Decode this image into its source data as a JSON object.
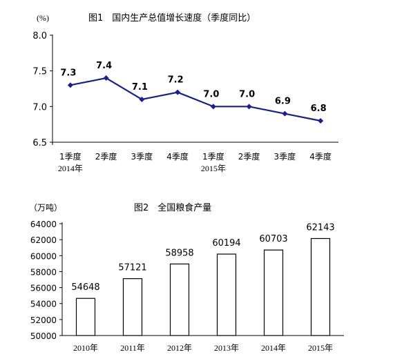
{
  "chart_data": [
    {
      "type": "line",
      "title": "图1　国内生产总值增长速度（季度同比）",
      "unit": "(%)",
      "categories": [
        "1季度",
        "2季度",
        "3季度",
        "4季度",
        "1季度",
        "2季度",
        "3季度",
        "4季度"
      ],
      "group_labels": [
        "2014年",
        "2015年"
      ],
      "series": [
        {
          "values": [
            7.3,
            7.4,
            7.1,
            7.2,
            7.0,
            7.0,
            6.9,
            6.8
          ]
        }
      ],
      "data_labels": [
        "7.3",
        "7.4",
        "7.1",
        "7.2",
        "7.0",
        "7.0",
        "6.9",
        "6.8"
      ],
      "yticks": [
        "8.0",
        "7.5",
        "7.0",
        "6.5"
      ],
      "ylim": [
        6.5,
        8.0
      ],
      "color": "#1a1f8c",
      "grid": false
    },
    {
      "type": "bar",
      "title": "图2　全国粮食产量",
      "unit": "（万吨）",
      "categories": [
        "2010年",
        "2011年",
        "2012年",
        "2013年",
        "2014年",
        "2015年"
      ],
      "values": [
        54648,
        57121,
        58958,
        60194,
        60703,
        62143
      ],
      "data_labels": [
        "54648",
        "57121",
        "58958",
        "60194",
        "60703",
        "62143"
      ],
      "yticks": [
        "64000",
        "62000",
        "60000",
        "58000",
        "56000",
        "54000",
        "52000",
        "50000"
      ],
      "ylim": [
        50000,
        64000
      ],
      "bar_fill": "#ffffff",
      "bar_stroke": "#000000",
      "grid": false
    }
  ]
}
